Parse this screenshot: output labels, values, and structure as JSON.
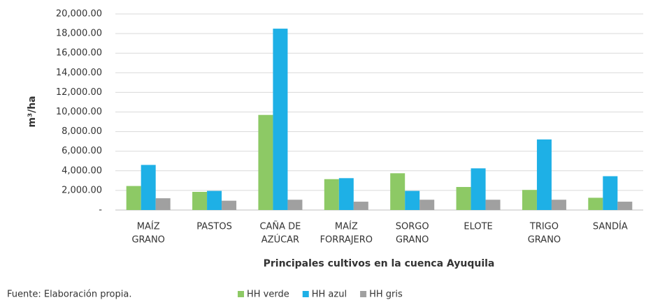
{
  "chart_data": {
    "type": "bar",
    "y_label": "m³/ha",
    "x_label": "Principales cultivos en la cuenca Ayuquila",
    "source": "Fuente: Elaboración propia.",
    "categories": [
      [
        "MAÍZ",
        "GRANO"
      ],
      [
        "PASTOS"
      ],
      [
        "CAÑA DE",
        "AZÚCAR"
      ],
      [
        "MAÍZ",
        "FORRAJERO"
      ],
      [
        "SORGO",
        "GRANO"
      ],
      [
        "ELOTE"
      ],
      [
        "TRIGO",
        "GRANO"
      ],
      [
        "SANDÍA"
      ]
    ],
    "series": [
      {
        "name": "HH verde",
        "color": "#8dc965",
        "values": [
          2450,
          1850,
          9700,
          3150,
          3750,
          2350,
          2050,
          1250
        ]
      },
      {
        "name": "HH azul",
        "color": "#1eb0e6",
        "values": [
          4600,
          1950,
          18500,
          3250,
          1950,
          4250,
          7200,
          3450
        ]
      },
      {
        "name": "HH gris",
        "color": "#a0a0a0",
        "values": [
          1200,
          950,
          1050,
          850,
          1050,
          1050,
          1050,
          850
        ]
      }
    ],
    "ylim": [
      0,
      20000
    ],
    "yticks": [
      {
        "value": 0,
        "label": "-"
      },
      {
        "value": 2000,
        "label": "2,000.00"
      },
      {
        "value": 4000,
        "label": "4,000.00"
      },
      {
        "value": 6000,
        "label": "6,000.00"
      },
      {
        "value": 8000,
        "label": "8,000.00"
      },
      {
        "value": 10000,
        "label": "10,000.00"
      },
      {
        "value": 12000,
        "label": "12,000.00"
      },
      {
        "value": 14000,
        "label": "14,000.00"
      },
      {
        "value": 16000,
        "label": "16,000.00"
      },
      {
        "value": 18000,
        "label": "18,000.00"
      },
      {
        "value": 20000,
        "label": "20,000.00"
      }
    ],
    "grid": true
  }
}
